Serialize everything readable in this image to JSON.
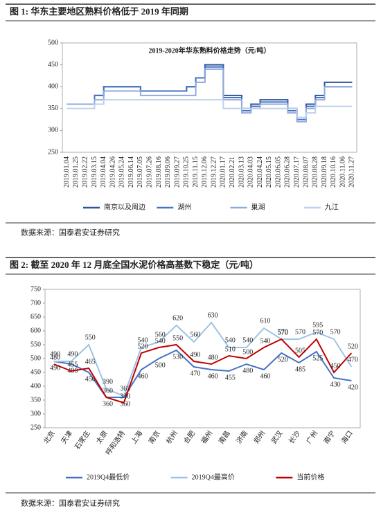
{
  "chart_data": [
    {
      "type": "line",
      "step": true,
      "title": "图 1: 华东主要地区熟料价格低于 2019 年同期",
      "subtitle": "2019-2020年华东熟料价格走势（元/吨）",
      "source": "数据来源：国泰君安证券研究",
      "categories": [
        "2019.01.04",
        "2019.01.25",
        "2019.02.22",
        "2019.03.15",
        "2019.04.04",
        "2019.04.26",
        "2019.05.24",
        "2019.06.14",
        "2019.07.05",
        "2019.07.26",
        "2019.08.16",
        "2019.09.06",
        "2019.09.27",
        "2019.10.25",
        "2019.11.15",
        "2019.12.06",
        "2019.12.27",
        "2020.01.17",
        "2020.02.21",
        "2020.03.13",
        "2020.04.03",
        "2020.04.24",
        "2020.05.15",
        "2020.06.05",
        "2020.06.28",
        "2020.07.17",
        "2020.08.07",
        "2020.08.28",
        "2020.09.18",
        "2020.10.16",
        "2020.11.06",
        "2020.11.27"
      ],
      "series": [
        {
          "name": "南京以及周边",
          "color": "#2f5597",
          "values": [
            360,
            360,
            360,
            380,
            400,
            400,
            400,
            400,
            390,
            390,
            390,
            390,
            390,
            400,
            420,
            450,
            450,
            380,
            380,
            350,
            360,
            370,
            370,
            370,
            350,
            330,
            360,
            380,
            410,
            410,
            410,
            410
          ]
        },
        {
          "name": "湖州",
          "color": "#4472c4",
          "values": [
            360,
            360,
            360,
            380,
            400,
            400,
            400,
            400,
            390,
            390,
            390,
            390,
            390,
            400,
            420,
            445,
            445,
            375,
            375,
            345,
            355,
            365,
            365,
            365,
            345,
            325,
            355,
            375,
            400,
            400,
            400,
            400
          ]
        },
        {
          "name": "巢湖",
          "color": "#8faadc",
          "values": [
            360,
            360,
            360,
            370,
            390,
            390,
            390,
            390,
            380,
            380,
            380,
            380,
            380,
            380,
            410,
            440,
            440,
            370,
            370,
            340,
            350,
            360,
            360,
            360,
            340,
            320,
            350,
            370,
            400,
            400,
            400,
            400
          ]
        },
        {
          "name": "九江",
          "color": "#bdd0ec",
          "values": [
            350,
            350,
            350,
            360,
            370,
            370,
            370,
            370,
            370,
            370,
            370,
            370,
            370,
            370,
            370,
            370,
            370,
            350,
            350,
            350,
            350,
            350,
            350,
            350,
            350,
            330,
            340,
            355,
            355,
            355,
            355,
            355
          ]
        }
      ],
      "ylim": [
        250,
        500
      ],
      "yticks": [
        250,
        300,
        350,
        400,
        450,
        500
      ],
      "grid": false,
      "legend": "bottom"
    },
    {
      "type": "line",
      "data_labels": true,
      "title": "图 2: 截至 2020 年 12 月底全国水泥价格高基数下稳定（元/吨）",
      "source": "数据来源：国泰君安证券研究",
      "categories": [
        "北京",
        "天津",
        "石家庄",
        "太原",
        "呼和浩特",
        "上海",
        "南京",
        "杭州",
        "合肥",
        "福州",
        "南昌",
        "济南",
        "郑州",
        "武汉",
        "长沙",
        "广州",
        "南宁",
        "海口"
      ],
      "series": [
        {
          "name": "2019Q4最低价",
          "color": "#4472c4",
          "values": [
            490,
            480,
            450,
            360,
            360,
            460,
            500,
            530,
            470,
            460,
            455,
            480,
            460,
            520,
            485,
            525,
            430,
            420
          ]
        },
        {
          "name": "2019Q4最高价",
          "color": "#9dc3e6",
          "values": [
            490,
            490,
            550,
            390,
            365,
            540,
            560,
            620,
            560,
            630,
            540,
            540,
            610,
            570,
            570,
            595,
            570,
            470
          ]
        },
        {
          "name": "当前价格",
          "color": "#c00000",
          "values": [
            480,
            455,
            465,
            360,
            340,
            520,
            540,
            550,
            490,
            480,
            510,
            500,
            540,
            570,
            505,
            570,
            450,
            520
          ]
        }
      ],
      "ylim": [
        250,
        750
      ],
      "yticks": [
        250,
        300,
        350,
        400,
        450,
        500,
        550,
        600,
        650,
        700,
        750
      ],
      "grid": false,
      "legend": "bottom"
    }
  ]
}
